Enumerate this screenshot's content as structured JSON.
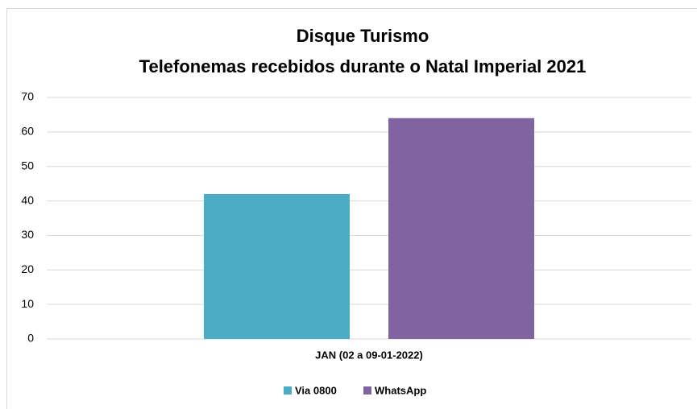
{
  "chart_data": {
    "type": "bar",
    "title": "Disque Turismo",
    "subtitle": "Telefonemas recebidos durante o Natal Imperial 2021",
    "categories": [
      "JAN (02 a 09-01-2022)"
    ],
    "series": [
      {
        "name": "Via 0800",
        "color": "#4bacc6",
        "values": [
          42
        ]
      },
      {
        "name": "WhatsApp",
        "color": "#8064a2",
        "values": [
          64
        ]
      }
    ],
    "ylim": [
      0,
      70
    ],
    "yticks": [
      0,
      10,
      20,
      30,
      40,
      50,
      60,
      70
    ],
    "grid": true,
    "legend": "bottom"
  }
}
